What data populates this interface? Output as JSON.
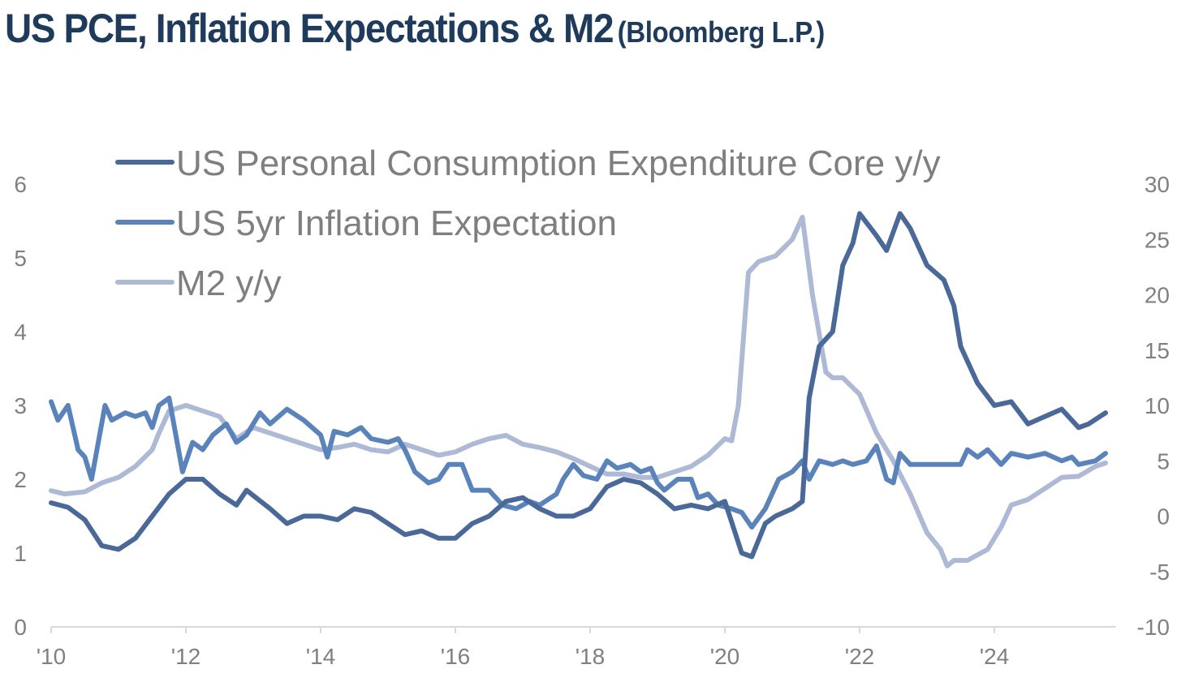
{
  "title": {
    "main": "US PCE, Inflation Expectations & M2",
    "source": "(Bloomberg L.P.)"
  },
  "chart_data": {
    "type": "line",
    "title": "US PCE, Inflation Expectations & M2 (Bloomberg L.P.)",
    "xlabel": "",
    "ylabel": "",
    "y2label": "",
    "xlim": [
      2010,
      2025.8
    ],
    "ylim": [
      0,
      6
    ],
    "y2lim": [
      -10,
      30
    ],
    "x_ticks": [
      {
        "v": 2010,
        "label": "'10"
      },
      {
        "v": 2012,
        "label": "'12"
      },
      {
        "v": 2014,
        "label": "'14"
      },
      {
        "v": 2016,
        "label": "'16"
      },
      {
        "v": 2018,
        "label": "'18"
      },
      {
        "v": 2020,
        "label": "'20"
      },
      {
        "v": 2022,
        "label": "'22"
      },
      {
        "v": 2024,
        "label": "'24"
      }
    ],
    "y_ticks": [
      "0",
      "1",
      "2",
      "3",
      "4",
      "5",
      "6"
    ],
    "y2_ticks": [
      "-10",
      "-5",
      "0",
      "5",
      "10",
      "15",
      "20",
      "25",
      "30"
    ],
    "grid": false,
    "legend_position": "top-left",
    "series": [
      {
        "name": "US Personal Consumption Expenditure Core y/y",
        "axis": "left",
        "color": "#4a6898",
        "x": [
          2010.0,
          2010.25,
          2010.5,
          2010.75,
          2011.0,
          2011.25,
          2011.5,
          2011.75,
          2012.0,
          2012.25,
          2012.5,
          2012.75,
          2012.9,
          2013.25,
          2013.5,
          2013.75,
          2014.0,
          2014.25,
          2014.5,
          2014.75,
          2015.0,
          2015.25,
          2015.5,
          2015.75,
          2016.0,
          2016.25,
          2016.5,
          2016.75,
          2017.0,
          2017.25,
          2017.5,
          2017.75,
          2018.0,
          2018.25,
          2018.5,
          2018.75,
          2019.0,
          2019.25,
          2019.5,
          2019.75,
          2020.0,
          2020.25,
          2020.4,
          2020.6,
          2020.75,
          2021.0,
          2021.15,
          2021.25,
          2021.4,
          2021.6,
          2021.75,
          2021.9,
          2022.0,
          2022.25,
          2022.4,
          2022.6,
          2022.75,
          2023.0,
          2023.25,
          2023.4,
          2023.5,
          2023.75,
          2024.0,
          2024.25,
          2024.5,
          2024.75,
          2025.0,
          2025.25,
          2025.4,
          2025.65
        ],
        "values": [
          1.68,
          1.62,
          1.45,
          1.1,
          1.05,
          1.2,
          1.5,
          1.8,
          2.0,
          2.0,
          1.8,
          1.65,
          1.85,
          1.6,
          1.4,
          1.5,
          1.5,
          1.45,
          1.6,
          1.55,
          1.4,
          1.25,
          1.3,
          1.2,
          1.2,
          1.4,
          1.5,
          1.7,
          1.75,
          1.6,
          1.5,
          1.5,
          1.6,
          1.9,
          2.0,
          1.95,
          1.8,
          1.6,
          1.65,
          1.6,
          1.7,
          1.0,
          0.95,
          1.4,
          1.5,
          1.6,
          1.7,
          3.1,
          3.8,
          4.0,
          4.9,
          5.2,
          5.6,
          5.3,
          5.1,
          5.6,
          5.4,
          4.9,
          4.7,
          4.35,
          3.8,
          3.3,
          3.0,
          3.05,
          2.75,
          2.85,
          2.95,
          2.7,
          2.75,
          2.9
        ]
      },
      {
        "name": "US 5yr Inflation Expectation",
        "axis": "left",
        "color": "#5b83bb",
        "x": [
          2010.0,
          2010.1,
          2010.25,
          2010.4,
          2010.5,
          2010.6,
          2010.8,
          2010.9,
          2011.1,
          2011.25,
          2011.4,
          2011.5,
          2011.6,
          2011.75,
          2011.95,
          2012.1,
          2012.25,
          2012.4,
          2012.6,
          2012.75,
          2012.9,
          2013.1,
          2013.25,
          2013.5,
          2013.75,
          2014.0,
          2014.1,
          2014.2,
          2014.4,
          2014.6,
          2014.75,
          2015.0,
          2015.15,
          2015.25,
          2015.4,
          2015.6,
          2015.75,
          2015.9,
          2016.1,
          2016.25,
          2016.5,
          2016.7,
          2016.9,
          2017.1,
          2017.25,
          2017.5,
          2017.6,
          2017.75,
          2017.9,
          2018.1,
          2018.25,
          2018.4,
          2018.6,
          2018.75,
          2018.9,
          2019.0,
          2019.1,
          2019.3,
          2019.5,
          2019.6,
          2019.75,
          2019.9,
          2020.1,
          2020.25,
          2020.4,
          2020.6,
          2020.8,
          2021.0,
          2021.15,
          2021.25,
          2021.4,
          2021.6,
          2021.75,
          2021.9,
          2022.1,
          2022.25,
          2022.4,
          2022.5,
          2022.6,
          2022.75,
          2023.0,
          2023.25,
          2023.5,
          2023.6,
          2023.75,
          2023.9,
          2024.1,
          2024.25,
          2024.5,
          2024.75,
          2025.0,
          2025.15,
          2025.25,
          2025.5,
          2025.65
        ],
        "values": [
          3.05,
          2.8,
          3.0,
          2.4,
          2.3,
          2.0,
          3.0,
          2.8,
          2.9,
          2.85,
          2.9,
          2.7,
          3.0,
          3.1,
          2.1,
          2.5,
          2.4,
          2.6,
          2.75,
          2.5,
          2.6,
          2.9,
          2.75,
          2.95,
          2.8,
          2.6,
          2.3,
          2.65,
          2.6,
          2.7,
          2.55,
          2.5,
          2.55,
          2.4,
          2.1,
          1.95,
          2.0,
          2.2,
          2.2,
          1.85,
          1.85,
          1.65,
          1.6,
          1.7,
          1.65,
          1.8,
          2.0,
          2.2,
          2.05,
          2.0,
          2.25,
          2.15,
          2.2,
          2.1,
          2.15,
          1.95,
          1.85,
          2.0,
          2.0,
          1.75,
          1.8,
          1.65,
          1.6,
          1.55,
          1.35,
          1.6,
          2.0,
          2.1,
          2.25,
          2.0,
          2.25,
          2.2,
          2.25,
          2.2,
          2.25,
          2.45,
          2.0,
          1.95,
          2.35,
          2.2,
          2.2,
          2.2,
          2.2,
          2.4,
          2.3,
          2.4,
          2.2,
          2.35,
          2.3,
          2.35,
          2.25,
          2.3,
          2.2,
          2.25,
          2.35
        ]
      },
      {
        "name": "M2 y/y",
        "axis": "right",
        "color": "#adb9d5",
        "x": [
          2010.0,
          2010.2,
          2010.5,
          2010.75,
          2011.0,
          2011.25,
          2011.5,
          2011.6,
          2011.75,
          2012.0,
          2012.25,
          2012.5,
          2012.75,
          2013.0,
          2013.25,
          2013.5,
          2013.75,
          2014.0,
          2014.25,
          2014.5,
          2014.75,
          2015.0,
          2015.25,
          2015.5,
          2015.75,
          2016.0,
          2016.25,
          2016.5,
          2016.75,
          2017.0,
          2017.25,
          2017.5,
          2017.75,
          2018.0,
          2018.25,
          2018.5,
          2018.75,
          2019.0,
          2019.25,
          2019.5,
          2019.75,
          2020.0,
          2020.1,
          2020.2,
          2020.35,
          2020.5,
          2020.75,
          2021.0,
          2021.15,
          2021.3,
          2021.5,
          2021.6,
          2021.75,
          2022.0,
          2022.25,
          2022.5,
          2022.75,
          2023.0,
          2023.2,
          2023.3,
          2023.4,
          2023.6,
          2023.9,
          2024.1,
          2024.25,
          2024.5,
          2024.75,
          2025.0,
          2025.25,
          2025.5,
          2025.65
        ],
        "values": [
          2.3,
          2.0,
          2.2,
          3.0,
          3.5,
          4.5,
          6.0,
          7.5,
          9.5,
          10.0,
          9.5,
          9.0,
          7.0,
          8.0,
          7.5,
          7.0,
          6.5,
          6.0,
          6.2,
          6.5,
          6.0,
          5.8,
          6.5,
          6.0,
          5.5,
          5.8,
          6.5,
          7.0,
          7.3,
          6.5,
          6.2,
          5.8,
          5.2,
          4.5,
          3.8,
          3.8,
          3.5,
          3.5,
          4.0,
          4.5,
          5.5,
          7.0,
          6.8,
          10.0,
          22.0,
          23.0,
          23.5,
          25.0,
          27.0,
          20.0,
          13.0,
          12.5,
          12.5,
          11.0,
          7.5,
          5.0,
          2.0,
          -1.5,
          -3.0,
          -4.5,
          -4.0,
          -4.0,
          -3.0,
          -1.0,
          1.0,
          1.5,
          2.5,
          3.5,
          3.6,
          4.5,
          4.8
        ]
      }
    ]
  }
}
